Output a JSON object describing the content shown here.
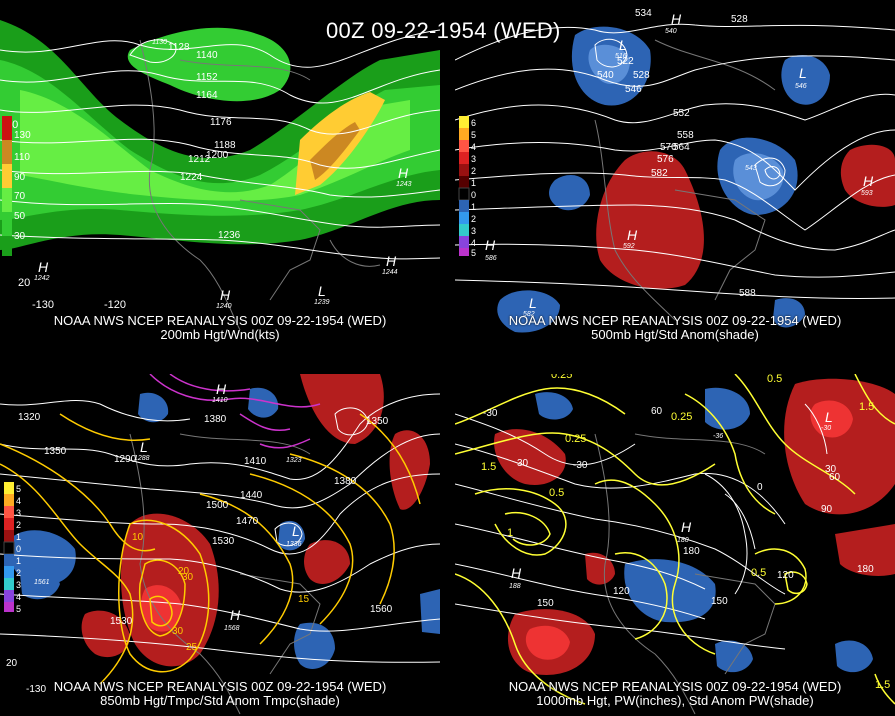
{
  "title": "00Z 09-22-1954 (WED)",
  "colors": {
    "background": "#000000",
    "contour": "#ffffff",
    "temp_contour": "#ffcc00",
    "cold_contour": "#cc33cc",
    "pw_contour": "#ffff33",
    "pos_anom": "#b41e1e",
    "neg_anom": "#2d64b4"
  },
  "panels": [
    {
      "id": "tl",
      "line1": "NOAA NWS NCEP REANALYSIS 00Z 09-22-1954 (WED)",
      "line2": "200mb Hgt/Wnd(kts)",
      "legend": [
        "130",
        "110",
        "90",
        "70",
        "50",
        "30"
      ],
      "lon_labels": [
        "-130",
        "-120"
      ],
      "lat_labels": [
        "40",
        "20"
      ],
      "contour_labels": [
        "1128",
        "1140",
        "1152",
        "1164",
        "1176",
        "1188",
        "1200",
        "1212",
        "1224",
        "1236"
      ],
      "centers": [
        {
          "type": "H",
          "value": "1243"
        },
        {
          "type": "H",
          "value": "1242"
        },
        {
          "type": "H",
          "value": "1240"
        },
        {
          "type": "L",
          "value": "1239"
        },
        {
          "type": "H",
          "value": "1244"
        },
        {
          "type": "L",
          "value": "1130"
        }
      ]
    },
    {
      "id": "tr",
      "line1": "NOAA NWS NCEP REANALYSIS 00Z 09-22-1954 (WED)",
      "line2": "500mb Hgt/Std Anom(shade)",
      "legend": [
        "6",
        "5",
        "4",
        "3",
        "2",
        "1",
        "0",
        "1",
        "2",
        "3",
        "4",
        "5"
      ],
      "contour_labels": [
        "534",
        "528",
        "522",
        "528",
        "540",
        "546",
        "552",
        "558",
        "564",
        "570",
        "576",
        "582",
        "588"
      ],
      "centers": [
        {
          "type": "H",
          "value": "540"
        },
        {
          "type": "L",
          "value": "516"
        },
        {
          "type": "L",
          "value": "546"
        },
        {
          "type": "L",
          "value": "543"
        },
        {
          "type": "H",
          "value": "592"
        },
        {
          "type": "H",
          "value": "593"
        },
        {
          "type": "H",
          "value": "586"
        },
        {
          "type": "L",
          "value": "582"
        }
      ]
    },
    {
      "id": "bl",
      "line1": "NOAA NWS NCEP REANALYSIS 00Z 09-22-1954 (WED)",
      "line2": "850mb Hgt/Tmpc/Std Anom Tmpc(shade)",
      "legend": [
        "5",
        "4",
        "3",
        "2",
        "1",
        "0",
        "1",
        "2",
        "3",
        "4",
        "5"
      ],
      "lon_labels": [
        "-130"
      ],
      "lat_labels": [
        "20"
      ],
      "contour_labels": [
        "1320",
        "1350",
        "1380",
        "1410",
        "1440",
        "1470",
        "1500",
        "1530",
        "1560",
        "1290",
        "1350",
        "1380",
        "1560"
      ],
      "temp_labels": [
        "10",
        "15",
        "20",
        "25",
        "30"
      ],
      "centers": [
        {
          "type": "L",
          "value": "1288"
        },
        {
          "type": "H",
          "value": "1410"
        },
        {
          "type": "L",
          "value": "1323"
        },
        {
          "type": "L",
          "value": "1336"
        },
        {
          "type": "H",
          "value": "1568"
        },
        {
          "type": "H",
          "value": "1561"
        }
      ]
    },
    {
      "id": "br",
      "line1": "NOAA NWS NCEP REANALYSIS 00Z 09-22-1954 (WED)",
      "line2": "1000mb Hgt, PW(inches), Std Anom PW(shade)",
      "contour_labels": [
        "-30",
        "0",
        "30",
        "60",
        "90",
        "120",
        "150",
        "180"
      ],
      "pw_labels": [
        "0.25",
        "0.5",
        "1",
        "1.5"
      ],
      "centers": [
        {
          "type": "L",
          "value": "-30"
        },
        {
          "type": "H",
          "value": "180"
        },
        {
          "type": "H",
          "value": "188"
        },
        {
          "type": "L",
          "value": "-36"
        }
      ]
    }
  ]
}
